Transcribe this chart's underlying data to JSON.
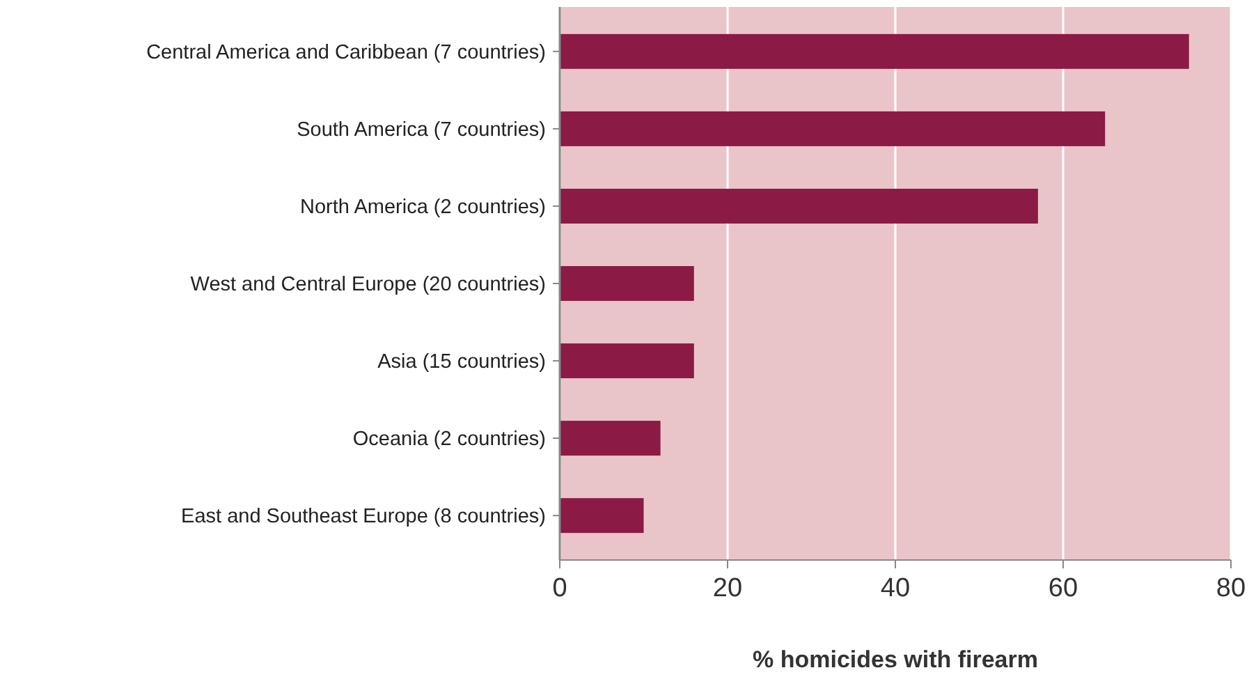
{
  "chart_data": {
    "type": "bar",
    "orientation": "horizontal",
    "xlabel": "% homicides with firearm",
    "categories": [
      "Central America and Caribbean (7 countries)",
      "South America (7 countries)",
      "North America (2 countries)",
      "West and Central Europe (20 countries)",
      "Asia (15 countries)",
      "Oceania (2 countries)",
      "East and Southeast Europe (8 countries)"
    ],
    "values": [
      75,
      65,
      57,
      16,
      16,
      12,
      10
    ],
    "color": "#8b1a45",
    "xlim": [
      0,
      80
    ],
    "xticks": [
      0,
      20,
      40,
      60,
      80
    ],
    "grid": "x"
  }
}
